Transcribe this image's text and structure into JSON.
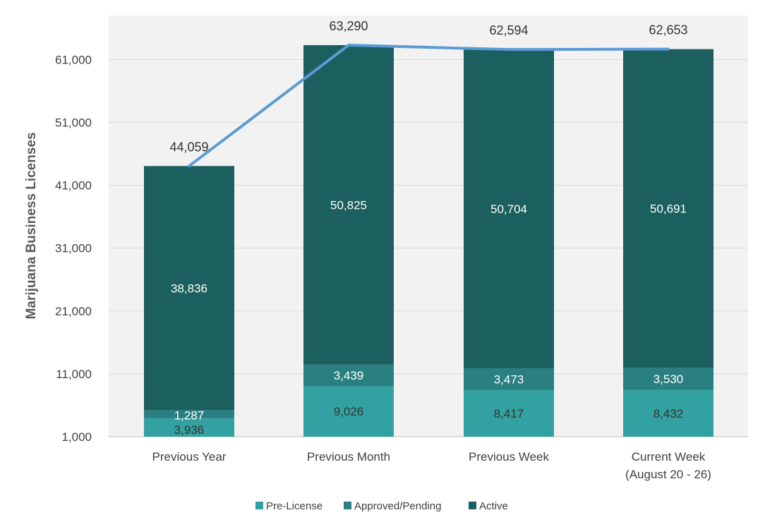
{
  "chart_data": {
    "type": "bar",
    "stacked": true,
    "categories": [
      "Previous Year",
      "Previous Month",
      "Previous Week",
      "Current Week\n(August 20 - 26)"
    ],
    "series": [
      {
        "name": "Pre-License",
        "values": [
          3936,
          9026,
          8417,
          8432
        ],
        "color": "#33a1a1",
        "label_color": "#333333"
      },
      {
        "name": "Approved/Pending",
        "values": [
          1287,
          3439,
          3473,
          3530
        ],
        "color": "#2a8080",
        "label_color": "#ffffff"
      },
      {
        "name": "Active",
        "values": [
          38836,
          50825,
          50704,
          50691
        ],
        "color": "#1b5f5f",
        "label_color": "#ffffff"
      }
    ],
    "line_series": {
      "values": [
        44059,
        63290,
        62594,
        62653
      ],
      "color": "#5b9bd5"
    },
    "ylabel": "Marijuana Business Licenses",
    "y_ticks": [
      "1,000",
      "11,000",
      "21,000",
      "31,000",
      "41,000",
      "51,000",
      "61,000"
    ],
    "y_tick_values": [
      1000,
      11000,
      21000,
      31000,
      41000,
      51000,
      61000
    ],
    "ylim": [
      1000,
      68000
    ],
    "grid": true,
    "legend_position": "bottom"
  }
}
